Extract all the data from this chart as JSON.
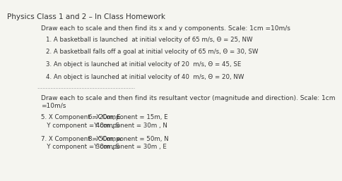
{
  "title": "Physics Class 1 and 2 – In Class Homework",
  "section1_header": "Draw each to scale and then find its x and y components. Scale: 1cm =10m/s",
  "items": [
    "1. A basketball is launched  at initial velocity of 65 m/s, Θ = 25, NW",
    "2. A basketball falls off a goal at initial velocity of 65 m/s, Θ = 30, SW",
    "3. An object is launched at initial velocity of 20  m/s, Θ = 45, SE",
    "4. An object is launched at initial velocity of 40  m/s, Θ = 20, NW"
  ],
  "section2_header": "Draw each to scale and then find its resultant vector (magnitude and direction). Scale: 1cm\n=10m/s",
  "col1": [
    "5. X Component = 20m, E\n   Y component = 40m , S",
    "7. X Component = 50m, w\n   Y component = 30m , S"
  ],
  "col2": [
    "6. X Component = 15m, E\n   Y component = 30m , N",
    "8. X Component = 50m, N\n   Y component = 30m , E"
  ],
  "bg_color": "#f5f5f0",
  "text_color": "#333333",
  "title_fontsize": 7.5,
  "header_fontsize": 6.5,
  "item_fontsize": 6.2,
  "divider_color": "#aaaaaa"
}
